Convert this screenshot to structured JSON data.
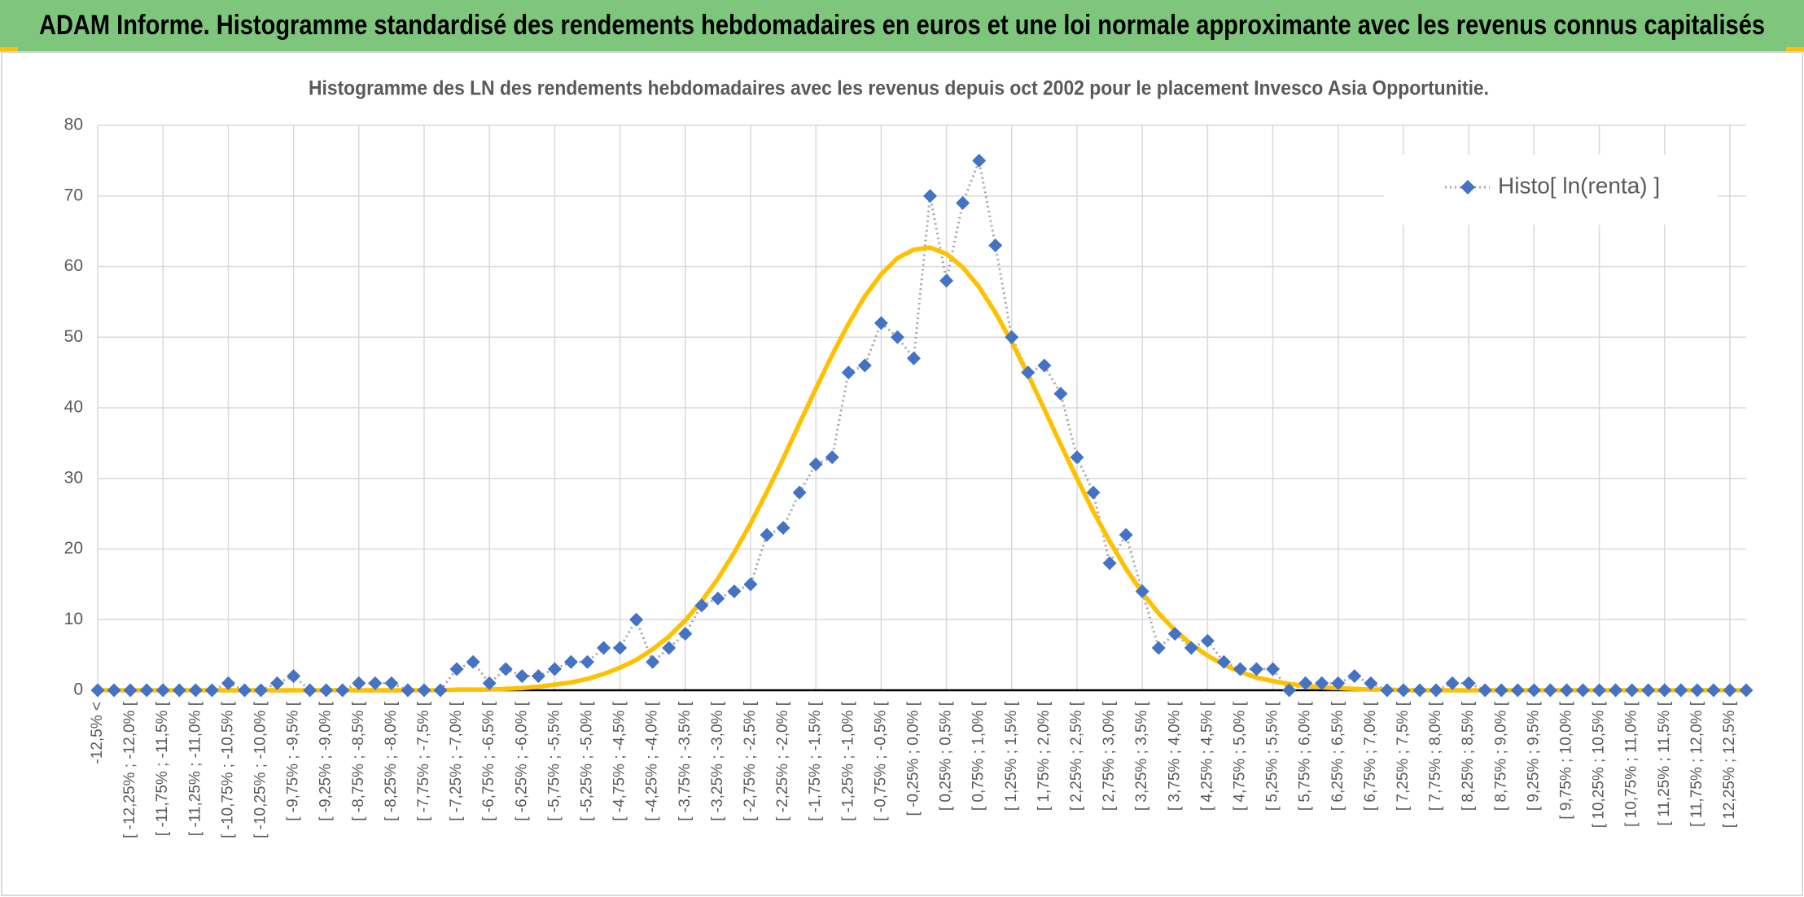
{
  "banner": {
    "title": "ADAM Informe. Histogramme standardisé des rendements hebdomadaires en euros et une loi normale approximante avec les revenus connus capitalisés"
  },
  "chart_data": {
    "type": "line",
    "title": "Histogramme des LN des rendements hebdomadaires avec les revenus depuis oct 2002 pour le placement Invesco Asia Opportunitie.",
    "categories": [
      "-12,5% <",
      null,
      "[ -12,25% ; -12,0% [",
      null,
      "[ -11,75% ; -11,5% [",
      null,
      "[ -11,25% ; -11,0% [",
      null,
      "[ -10,75% ; -10,5% [",
      null,
      "[ -10,25% ; -10,0% [",
      null,
      "[ -9,75% ; -9,5% [",
      null,
      "[ -9,25% ; -9,0% [",
      null,
      "[ -8,75% ; -8,5% [",
      null,
      "[ -8,25% ; -8,0% [",
      null,
      "[ -7,75% ; -7,5% [",
      null,
      "[ -7,25% ; -7,0% [",
      null,
      "[ -6,75% ; -6,5% [",
      null,
      "[ -6,25% ; -6,0% [",
      null,
      "[ -5,75% ; -5,5% [",
      null,
      "[ -5,25% ; -5,0% [",
      null,
      "[ -4,75% ; -4,5% [",
      null,
      "[ -4,25% ; -4,0% [",
      null,
      "[ -3,75% ; -3,5% [",
      null,
      "[ -3,25% ; -3,0% [",
      null,
      "[ -2,75% ; -2,5% [",
      null,
      "[ -2,25% ; -2,0% [",
      null,
      "[ -1,75% ; -1,5% [",
      null,
      "[ -1,25% ; -1,0% [",
      null,
      "[ -0,75% ; -0,5% [",
      null,
      "[ -0,25% ; 0,0% [",
      null,
      "[ 0,25% ; 0,5% [",
      null,
      "[ 0,75% ; 1,0% [",
      null,
      "[ 1,25% ; 1,5% [",
      null,
      "[ 1,75% ; 2,0% [",
      null,
      "[ 2,25% ; 2,5% [",
      null,
      "[ 2,75% ; 3,0% [",
      null,
      "[ 3,25% ; 3,5% [",
      null,
      "[ 3,75% ; 4,0% [",
      null,
      "[ 4,25% ; 4,5% [",
      null,
      "[ 4,75% ; 5,0% [",
      null,
      "[ 5,25% ; 5,5% [",
      null,
      "[ 5,75% ; 6,0% [",
      null,
      "[ 6,25% ; 6,5% [",
      null,
      "[ 6,75% ; 7,0% [",
      null,
      "[ 7,25% ; 7,5% [",
      null,
      "[ 7,75% ; 8,0% [",
      null,
      "[ 8,25% ; 8,5% [",
      null,
      "[ 8,75% ; 9,0% [",
      null,
      "[ 9,25% ; 9,5% [",
      null,
      "[ 9,75% ; 10,0% [",
      null,
      "[ 10,25% ; 10,5% [",
      null,
      "[ 10,75% ; 11,0% [",
      null,
      "[ 11,25% ; 11,5% [",
      null,
      "[ 11,75% ; 12,0% [",
      null,
      "[ 12,25% ; 12,5% [",
      null
    ],
    "series": [
      {
        "name": "Histo[ ln(renta) ]",
        "color": "#4472c4",
        "line_color": "#a6a6a6",
        "marker": "diamond",
        "values": [
          0,
          0,
          0,
          0,
          0,
          0,
          0,
          0,
          1,
          0,
          0,
          1,
          2,
          0,
          0,
          0,
          1,
          1,
          1,
          0,
          0,
          0,
          3,
          4,
          1,
          3,
          2,
          2,
          3,
          4,
          4,
          6,
          6,
          10,
          4,
          6,
          8,
          12,
          13,
          14,
          15,
          22,
          23,
          28,
          32,
          33,
          45,
          46,
          52,
          50,
          47,
          70,
          58,
          69,
          75,
          63,
          50,
          45,
          46,
          42,
          33,
          28,
          18,
          22,
          14,
          6,
          8,
          6,
          7,
          4,
          3,
          3,
          3,
          0,
          1,
          1,
          1,
          2,
          1,
          0,
          0,
          0,
          0,
          1,
          1,
          0,
          0,
          0,
          0,
          0,
          0,
          0,
          0,
          0,
          0,
          0,
          0,
          0,
          0,
          0,
          0,
          0
        ]
      },
      {
        "color": "#ffc000",
        "values": [
          0,
          0,
          0,
          0,
          0,
          0,
          0,
          0,
          0,
          0,
          0,
          0,
          0,
          0,
          0,
          0,
          0,
          0,
          0,
          0,
          0,
          0,
          0.1,
          0.1,
          0.1,
          0.2,
          0.3,
          0.5,
          0.8,
          1.1,
          1.6,
          2.3,
          3.2,
          4.3,
          5.8,
          7.6,
          9.9,
          12.6,
          15.8,
          19.5,
          23.6,
          28.1,
          32.8,
          37.8,
          42.7,
          47.5,
          51.9,
          55.8,
          58.9,
          61.2,
          62.4,
          62.7,
          61.8,
          59.9,
          57.1,
          53.5,
          49.3,
          44.7,
          39.8,
          34.8,
          30.0,
          25.3,
          21.1,
          17.2,
          13.8,
          10.9,
          8.5,
          6.5,
          4.9,
          3.6,
          2.6,
          1.8,
          1.3,
          0.9,
          0.6,
          0.4,
          0.3,
          0.2,
          0.1,
          0.1,
          0,
          0,
          0,
          0,
          0,
          0,
          0,
          0,
          0,
          0,
          0,
          0,
          0,
          0,
          0,
          0,
          0,
          0,
          0,
          0,
          0,
          0
        ]
      }
    ],
    "ylim": [
      0,
      80
    ],
    "yticks": [
      0,
      10,
      20,
      30,
      40,
      50,
      60,
      70,
      80
    ],
    "grid": true,
    "legend": "upper right"
  }
}
